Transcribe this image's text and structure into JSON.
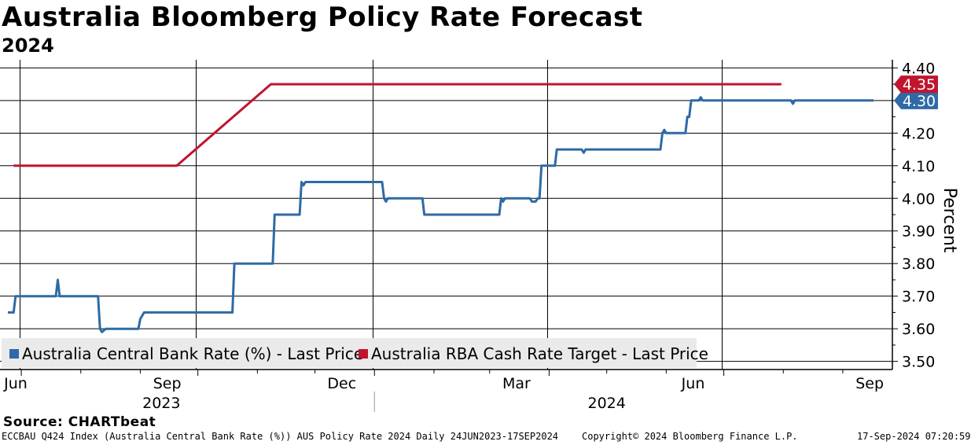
{
  "header": {
    "title": "Australia Bloomberg Policy Rate Forecast",
    "subtitle": "2024"
  },
  "source": "Source: CHARTbeat",
  "footer": {
    "left": "ECCBAU Q424 Index (Australia Central Bank Rate (%)) AUS Policy Rate 2024  Daily 24JUN2023-17SEP2024",
    "center": "Copyright© 2024 Bloomberg Finance L.P.",
    "right": "17-Sep-2024 07:20:59"
  },
  "colors": {
    "blue": "#2e6aa6",
    "red": "#c0152f",
    "grid": "#000000",
    "legend_bg": "#eaeaea"
  },
  "chart_data": {
    "type": "line",
    "title": "Australia Bloomberg Policy Rate Forecast",
    "subtitle": "2024",
    "ylabel": "Percent",
    "ylim": [
      3.5,
      4.4
    ],
    "y_ticks": [
      "4.40",
      "4.30",
      "4.20",
      "4.10",
      "4.00",
      "3.90",
      "3.80",
      "3.70",
      "3.60",
      "3.50"
    ],
    "x_ticks": [
      "Jun",
      "Sep",
      "Dec",
      "Mar",
      "Jun",
      "Sep"
    ],
    "year_labels": [
      "2023",
      "2024"
    ],
    "legend_position": "bottom-left",
    "series": [
      {
        "name": "Australia Central Bank Rate (%) - Last Price",
        "color": "#2e6aa6",
        "last_value": "4.30",
        "points": [
          [
            "2023-06-24",
            3.65
          ],
          [
            "2023-06-27",
            3.65
          ],
          [
            "2023-06-28",
            3.7
          ],
          [
            "2023-07-19",
            3.7
          ],
          [
            "2023-07-20",
            3.75
          ],
          [
            "2023-07-21",
            3.7
          ],
          [
            "2023-08-10",
            3.7
          ],
          [
            "2023-08-11",
            3.6
          ],
          [
            "2023-08-12",
            3.59
          ],
          [
            "2023-08-14",
            3.6
          ],
          [
            "2023-08-31",
            3.6
          ],
          [
            "2023-09-01",
            3.63
          ],
          [
            "2023-09-03",
            3.65
          ],
          [
            "2023-10-19",
            3.65
          ],
          [
            "2023-10-20",
            3.8
          ],
          [
            "2023-11-09",
            3.8
          ],
          [
            "2023-11-10",
            3.95
          ],
          [
            "2023-11-23",
            3.95
          ],
          [
            "2023-11-24",
            4.05
          ],
          [
            "2023-11-25",
            4.04
          ],
          [
            "2023-11-26",
            4.05
          ],
          [
            "2024-01-05",
            4.05
          ],
          [
            "2024-01-06",
            4.0
          ],
          [
            "2024-01-07",
            3.99
          ],
          [
            "2024-01-08",
            4.0
          ],
          [
            "2024-01-26",
            4.0
          ],
          [
            "2024-01-27",
            3.95
          ],
          [
            "2024-03-06",
            3.95
          ],
          [
            "2024-03-07",
            4.0
          ],
          [
            "2024-03-08",
            3.99
          ],
          [
            "2024-03-09",
            4.0
          ],
          [
            "2024-03-22",
            4.0
          ],
          [
            "2024-03-23",
            3.99
          ],
          [
            "2024-03-25",
            3.99
          ],
          [
            "2024-03-26",
            4.0
          ],
          [
            "2024-03-27",
            4.0
          ],
          [
            "2024-03-28",
            4.1
          ],
          [
            "2024-04-04",
            4.1
          ],
          [
            "2024-04-05",
            4.15
          ],
          [
            "2024-04-18",
            4.15
          ],
          [
            "2024-04-19",
            4.14
          ],
          [
            "2024-04-20",
            4.15
          ],
          [
            "2024-05-29",
            4.15
          ],
          [
            "2024-05-30",
            4.2
          ],
          [
            "2024-05-31",
            4.21
          ],
          [
            "2024-06-01",
            4.2
          ],
          [
            "2024-06-11",
            4.2
          ],
          [
            "2024-06-12",
            4.25
          ],
          [
            "2024-06-13",
            4.25
          ],
          [
            "2024-06-14",
            4.3
          ],
          [
            "2024-06-18",
            4.3
          ],
          [
            "2024-06-19",
            4.31
          ],
          [
            "2024-06-20",
            4.3
          ],
          [
            "2024-08-05",
            4.3
          ],
          [
            "2024-08-06",
            4.29
          ],
          [
            "2024-08-07",
            4.3
          ],
          [
            "2024-09-17",
            4.3
          ]
        ]
      },
      {
        "name": "Australia RBA Cash Rate Target - Last Price",
        "color": "#c0152f",
        "last_value": "4.35",
        "points": [
          [
            "2023-06-27",
            4.1
          ],
          [
            "2023-09-20",
            4.1
          ],
          [
            "2023-11-08",
            4.35
          ],
          [
            "2024-07-31",
            4.35
          ]
        ]
      }
    ]
  }
}
